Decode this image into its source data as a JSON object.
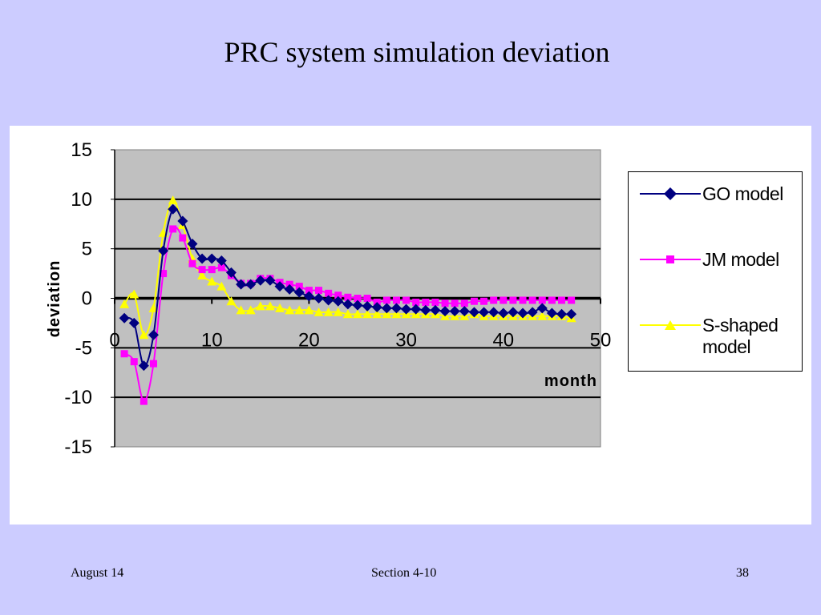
{
  "slide": {
    "title": "PRC system simulation deviation",
    "footer_date": "August 14",
    "footer_section": "Section 4-10",
    "footer_page": "38"
  },
  "chart_data": {
    "type": "line",
    "xlabel": "month",
    "ylabel": "deviation",
    "xlim": [
      0,
      50
    ],
    "ylim": [
      -15,
      15
    ],
    "xticks": [
      0,
      10,
      20,
      30,
      40,
      50
    ],
    "yticks": [
      15,
      10,
      5,
      0,
      -5,
      -10,
      -15
    ],
    "grid": "horizontal",
    "plot_background": "#c0c0c0",
    "legend_position": "right",
    "x": [
      1,
      2,
      3,
      4,
      5,
      6,
      7,
      8,
      9,
      10,
      11,
      12,
      13,
      14,
      15,
      16,
      17,
      18,
      19,
      20,
      21,
      22,
      23,
      24,
      25,
      26,
      27,
      28,
      29,
      30,
      31,
      32,
      33,
      34,
      35,
      36,
      37,
      38,
      39,
      40,
      41,
      42,
      43,
      44,
      45,
      46,
      47
    ],
    "series": [
      {
        "name": "GO model",
        "color": "#000080",
        "marker": "diamond",
        "values": [
          -2,
          -2.5,
          -6.8,
          -3.7,
          4.8,
          9,
          7.8,
          5.5,
          4,
          4,
          3.8,
          2.6,
          1.4,
          1.4,
          1.8,
          1.8,
          1.2,
          0.9,
          0.6,
          0.2,
          0,
          -0.2,
          -0.3,
          -0.6,
          -0.7,
          -0.8,
          -0.9,
          -1,
          -1,
          -1.1,
          -1.1,
          -1.2,
          -1.2,
          -1.3,
          -1.3,
          -1.3,
          -1.4,
          -1.4,
          -1.4,
          -1.5,
          -1.4,
          -1.5,
          -1.4,
          -1,
          -1.5,
          -1.6,
          -1.6
        ]
      },
      {
        "name": "JM model",
        "color": "#ff00ff",
        "marker": "square",
        "values": [
          -5.6,
          -6.4,
          -10.4,
          -6.6,
          2.5,
          7,
          6.1,
          3.5,
          2.9,
          2.9,
          3.1,
          2.3,
          1.5,
          1.5,
          2,
          2,
          1.6,
          1.4,
          1.2,
          0.8,
          0.8,
          0.5,
          0.3,
          0.1,
          0,
          0,
          -0.4,
          -0.2,
          -0.2,
          -0.2,
          -0.4,
          -0.4,
          -0.4,
          -0.5,
          -0.5,
          -0.5,
          -0.3,
          -0.3,
          -0.2,
          -0.2,
          -0.2,
          -0.2,
          -0.2,
          -0.2,
          -0.2,
          -0.2,
          -0.2
        ]
      },
      {
        "name": "S-shaped model",
        "color": "#ffff00",
        "marker": "triangle",
        "values": [
          -0.6,
          0.4,
          -3.7,
          -1.0,
          6.6,
          9.9,
          7.4,
          4,
          2.3,
          1.7,
          1.2,
          -0.3,
          -1.2,
          -1.2,
          -0.8,
          -0.8,
          -1,
          -1.2,
          -1.2,
          -1.2,
          -1.4,
          -1.4,
          -1.4,
          -1.6,
          -1.6,
          -1.6,
          -1.6,
          -1.6,
          -1.6,
          -1.6,
          -1.6,
          -1.6,
          -1.6,
          -1.8,
          -1.8,
          -1.8,
          -1.6,
          -1.8,
          -1.8,
          -1.8,
          -1.8,
          -1.8,
          -1.8,
          -1.8,
          -1.8,
          -1.8,
          -2
        ]
      }
    ]
  }
}
